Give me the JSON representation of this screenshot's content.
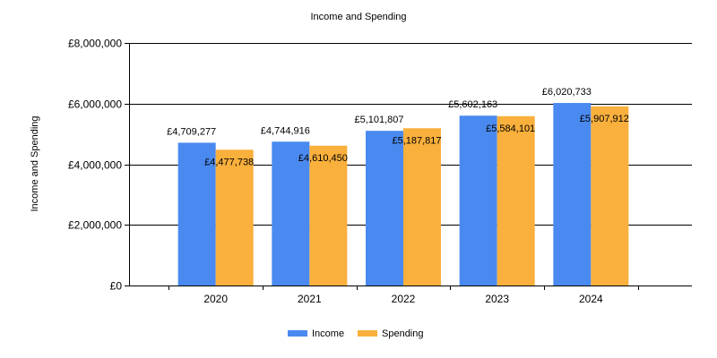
{
  "chart_data": {
    "type": "bar",
    "title": "Income and Spending",
    "ylabel": "Income and Spending",
    "xlabel": "",
    "categories": [
      "2020",
      "2021",
      "2022",
      "2023",
      "2024"
    ],
    "series": [
      {
        "name": "Income",
        "color": "#4a8af0",
        "values": [
          4709277,
          4744916,
          5101807,
          5602163,
          6020733
        ],
        "labels": [
          "£4,709,277",
          "£4,744,916",
          "£5,101,807",
          "£5,602,163",
          "£6,020,733"
        ]
      },
      {
        "name": "Spending",
        "color": "#f9b03c",
        "values": [
          4477738,
          4610450,
          5187817,
          5584101,
          5907912
        ],
        "labels": [
          "£4,477,738",
          "£4,610,450",
          "£5,187,817",
          "£5,584,101",
          "£5,907,912"
        ]
      }
    ],
    "ylim": [
      0,
      8000000
    ],
    "yticks": [
      0,
      2000000,
      4000000,
      6000000,
      8000000
    ],
    "ytick_labels": [
      "£0",
      "£2,000,000",
      "£4,000,000",
      "£6,000,000",
      "£8,000,000"
    ],
    "grid": true,
    "legend": "bottom-center"
  }
}
